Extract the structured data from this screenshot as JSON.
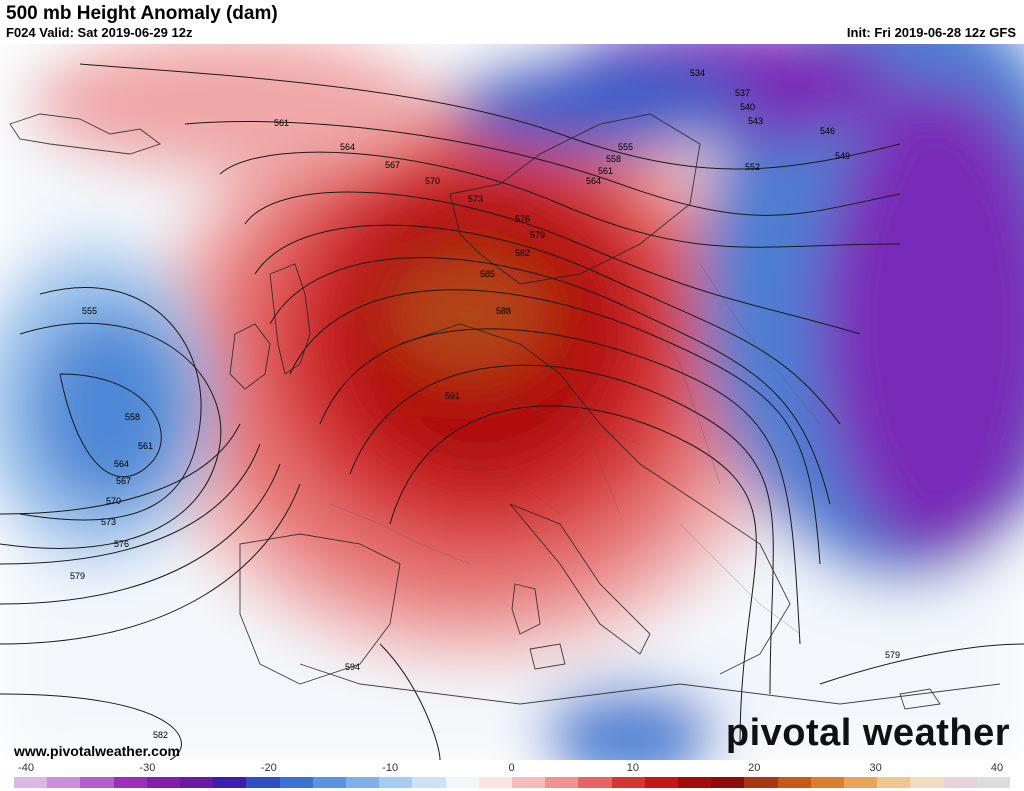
{
  "header": {
    "title": "500 mb Height Anomaly (dam)",
    "valid": "F024 Valid: Sat 2019-06-29 12z",
    "init": "Init: Fri 2019-06-28 12z GFS"
  },
  "footer": {
    "website": "www.pivotalweather.com",
    "logo": "pivotal weather"
  },
  "colorbar": {
    "ticks": [
      "-40",
      "-30",
      "-20",
      "-10",
      "0",
      "10",
      "20",
      "30",
      "40"
    ],
    "colors": [
      "#d9b8e6",
      "#c98fd9",
      "#b060c8",
      "#9b30b8",
      "#8020a8",
      "#6a1aa0",
      "#3c1eaa",
      "#2f4fc0",
      "#3b74d0",
      "#5b94dc",
      "#7fb0e6",
      "#a6cbef",
      "#cde2f6",
      "#f1f6fb",
      "#fbe4e4",
      "#f5bcbc",
      "#ee9292",
      "#e56464",
      "#d93434",
      "#c81414",
      "#a80a0a",
      "#8a0c0c",
      "#a33a14",
      "#c45a1a",
      "#d98030",
      "#e6a35a",
      "#edc690",
      "#f2dcc0",
      "#e6d2dd",
      "#dcdce0"
    ]
  },
  "map": {
    "contour_labels": [
      "534",
      "537",
      "540",
      "543",
      "546",
      "549",
      "552",
      "555",
      "558",
      "561",
      "564",
      "567",
      "570",
      "573",
      "576",
      "579",
      "582",
      "585",
      "588",
      "591",
      "594"
    ],
    "visible_labels": [
      {
        "text": "534"
      },
      {
        "text": "537"
      },
      {
        "text": "540"
      },
      {
        "text": "543"
      },
      {
        "text": "546"
      },
      {
        "text": "549"
      },
      {
        "text": "552"
      },
      {
        "text": "555"
      },
      {
        "text": "558"
      },
      {
        "text": "561"
      },
      {
        "text": "564"
      },
      {
        "text": "561"
      },
      {
        "text": "564"
      },
      {
        "text": "567"
      },
      {
        "text": "570"
      },
      {
        "text": "573"
      },
      {
        "text": "576"
      },
      {
        "text": "579"
      },
      {
        "text": "582"
      },
      {
        "text": "585"
      },
      {
        "text": "588"
      },
      {
        "text": "591"
      },
      {
        "text": "555"
      },
      {
        "text": "558"
      },
      {
        "text": "561"
      },
      {
        "text": "564"
      },
      {
        "text": "567"
      },
      {
        "text": "570"
      },
      {
        "text": "573"
      },
      {
        "text": "576"
      },
      {
        "text": "579"
      },
      {
        "text": "594"
      },
      {
        "text": "582"
      },
      {
        "text": "579"
      }
    ]
  }
}
